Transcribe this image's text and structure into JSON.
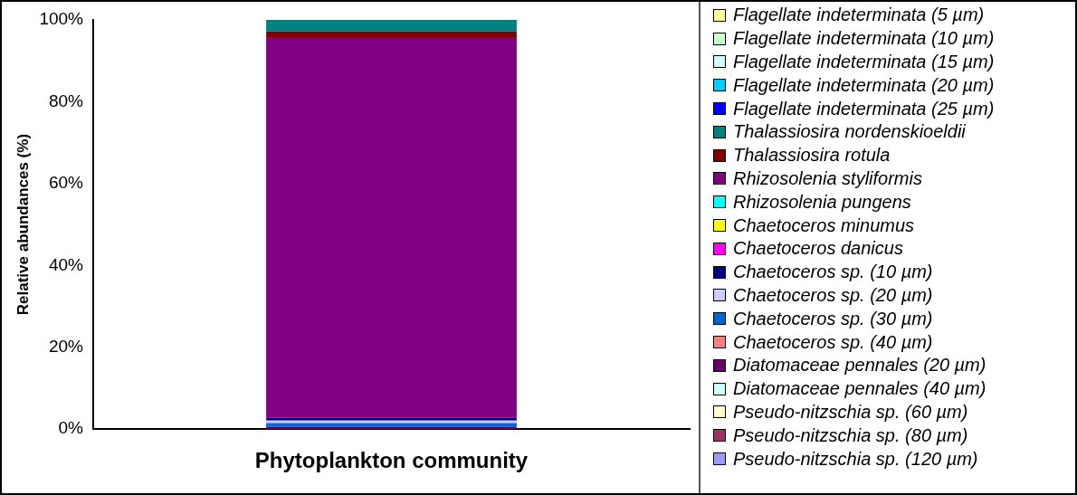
{
  "chart_data": {
    "type": "bar",
    "stacked": true,
    "ylabel": "Relative abundances (%)",
    "categories": [
      "Phytoplankton community"
    ],
    "ylim": [
      0,
      100
    ],
    "yticks": [
      {
        "value": 0,
        "label": "0%"
      },
      {
        "value": 20,
        "label": "20%"
      },
      {
        "value": 40,
        "label": "40%"
      },
      {
        "value": 60,
        "label": "60%"
      },
      {
        "value": 80,
        "label": "80%"
      },
      {
        "value": 100,
        "label": "100%"
      }
    ],
    "grid": false,
    "legend": "right",
    "series": [
      {
        "name": "Pseudo-nitzschia sp. (120 µm)",
        "color": "#9999ff",
        "values": [
          0
        ]
      },
      {
        "name": "Pseudo-nitzschia sp. (80 µm)",
        "color": "#993366",
        "values": [
          0
        ]
      },
      {
        "name": "Pseudo-nitzschia sp. (60 µm)",
        "color": "#ffffcc",
        "values": [
          0
        ]
      },
      {
        "name": "Diatomaceae pennales (40 µm)",
        "color": "#ccffff",
        "values": [
          0
        ]
      },
      {
        "name": "Diatomaceae pennales (20 µm)",
        "color": "#660066",
        "values": [
          0.6
        ]
      },
      {
        "name": "Chaetoceros sp. (40 µm)",
        "color": "#ff8080",
        "values": [
          0
        ]
      },
      {
        "name": "Chaetoceros sp. (30 µm)",
        "color": "#0066cc",
        "values": [
          0.9
        ]
      },
      {
        "name": "Chaetoceros sp. (20 µm)",
        "color": "#ccccff",
        "values": [
          0.6
        ]
      },
      {
        "name": "Chaetoceros sp. (10 µm)",
        "color": "#000080",
        "values": [
          0.7
        ]
      },
      {
        "name": "Chaetoceros danicus",
        "color": "#ff00ff",
        "values": [
          0
        ]
      },
      {
        "name": "Chaetoceros minumus",
        "color": "#ffff00",
        "values": [
          0
        ]
      },
      {
        "name": "Rhizosolenia pungens",
        "color": "#00ffff",
        "values": [
          0
        ]
      },
      {
        "name": "Rhizosolenia styliformis",
        "color": "#800080",
        "values": [
          93.0
        ]
      },
      {
        "name": "Thalassiosira rotula",
        "color": "#800000",
        "values": [
          1.4
        ]
      },
      {
        "name": "Thalassiosira nordenskioeldii",
        "color": "#008080",
        "values": [
          2.8
        ]
      },
      {
        "name": "Flagellate indeterminata (25 µm)",
        "color": "#0000ff",
        "values": [
          0
        ]
      },
      {
        "name": "Flagellate indeterminata (20 µm)",
        "color": "#00ccff",
        "values": [
          0
        ]
      },
      {
        "name": "Flagellate indeterminata (15 µm)",
        "color": "#ccffff",
        "values": [
          0
        ]
      },
      {
        "name": "Flagellate indeterminata (10 µm)",
        "color": "#ccffcc",
        "values": [
          0
        ]
      },
      {
        "name": "Flagellate indeterminata (5 µm)",
        "color": "#ffff99",
        "values": [
          0
        ]
      }
    ]
  }
}
